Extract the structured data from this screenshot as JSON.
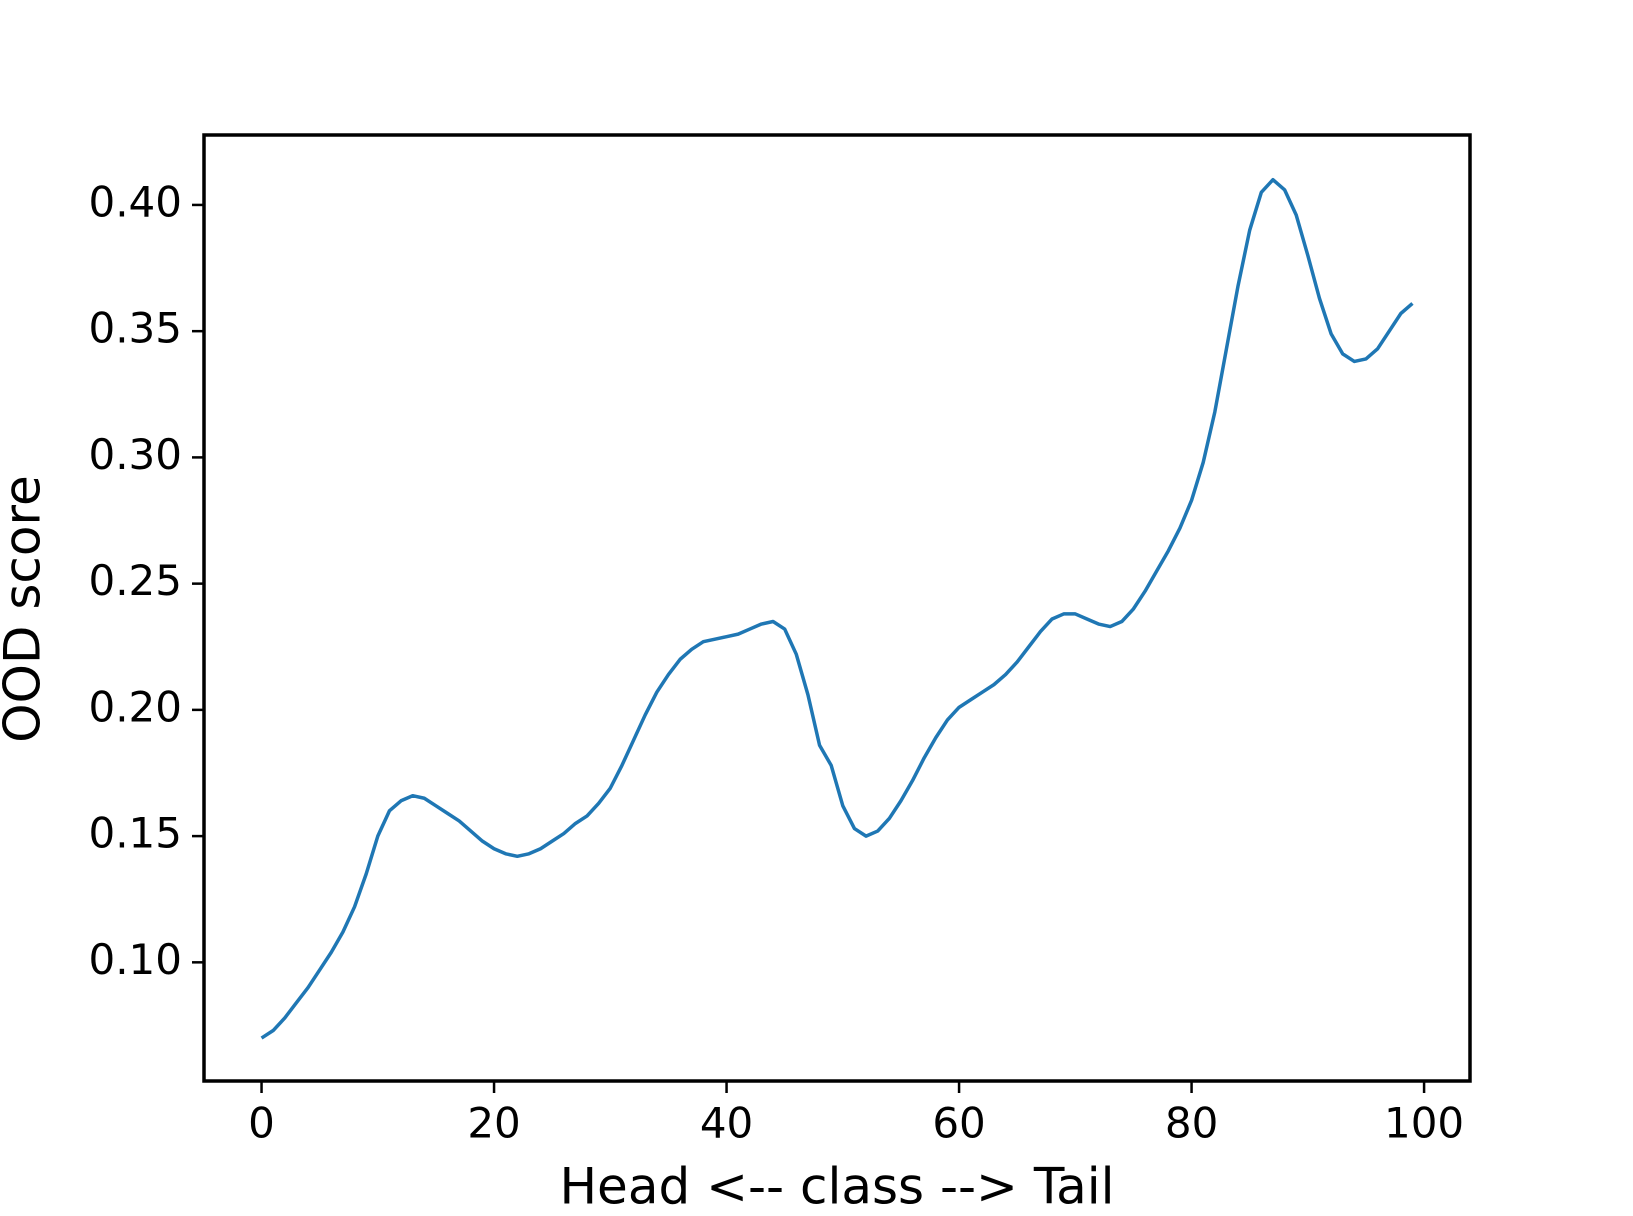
{
  "chart_data": {
    "type": "line",
    "x_label": "Head <-- class --> Tail",
    "y_label": "OOD score",
    "x": [
      0,
      1,
      2,
      3,
      4,
      5,
      6,
      7,
      8,
      9,
      10,
      11,
      12,
      13,
      14,
      15,
      16,
      17,
      18,
      19,
      20,
      21,
      22,
      23,
      24,
      25,
      26,
      27,
      28,
      29,
      30,
      31,
      32,
      33,
      34,
      35,
      36,
      37,
      38,
      39,
      40,
      41,
      42,
      43,
      44,
      45,
      46,
      47,
      48,
      49,
      50,
      51,
      52,
      53,
      54,
      55,
      56,
      57,
      58,
      59,
      60,
      61,
      62,
      63,
      64,
      65,
      66,
      67,
      68,
      69,
      70,
      71,
      72,
      73,
      74,
      75,
      76,
      77,
      78,
      79,
      80,
      81,
      82,
      83,
      84,
      85,
      86,
      87,
      88,
      89,
      90,
      91,
      92,
      93,
      94,
      95,
      96,
      97,
      98,
      99
    ],
    "values": [
      0.07,
      0.073,
      0.078,
      0.084,
      0.09,
      0.097,
      0.104,
      0.112,
      0.122,
      0.135,
      0.15,
      0.16,
      0.164,
      0.166,
      0.165,
      0.162,
      0.159,
      0.156,
      0.152,
      0.148,
      0.145,
      0.143,
      0.142,
      0.143,
      0.145,
      0.148,
      0.151,
      0.155,
      0.158,
      0.163,
      0.169,
      0.178,
      0.188,
      0.198,
      0.207,
      0.214,
      0.22,
      0.224,
      0.227,
      0.228,
      0.229,
      0.23,
      0.232,
      0.234,
      0.235,
      0.232,
      0.222,
      0.206,
      0.186,
      0.178,
      0.162,
      0.153,
      0.15,
      0.152,
      0.157,
      0.164,
      0.172,
      0.181,
      0.189,
      0.196,
      0.201,
      0.204,
      0.207,
      0.21,
      0.214,
      0.219,
      0.225,
      0.231,
      0.236,
      0.238,
      0.238,
      0.236,
      0.234,
      0.233,
      0.235,
      0.24,
      0.247,
      0.255,
      0.263,
      0.272,
      0.283,
      0.298,
      0.318,
      0.343,
      0.368,
      0.39,
      0.405,
      0.41,
      0.406,
      0.396,
      0.38,
      0.363,
      0.349,
      0.341,
      0.338,
      0.339,
      0.343,
      0.35,
      0.357,
      0.361
    ],
    "color": "#1f77b4",
    "xlim": [
      -4.95,
      103.95
    ],
    "ylim": [
      0.053,
      0.4277
    ],
    "xticks": [
      0,
      20,
      40,
      60,
      80,
      100
    ],
    "yticks": [
      {
        "value": 0.1,
        "label": "0.10"
      },
      0.15,
      {
        "value": 0.2,
        "label": "0.20"
      },
      0.25,
      {
        "value": 0.3,
        "label": "0.30"
      },
      0.35,
      {
        "value": 0.4,
        "label": "0.40"
      }
    ]
  }
}
